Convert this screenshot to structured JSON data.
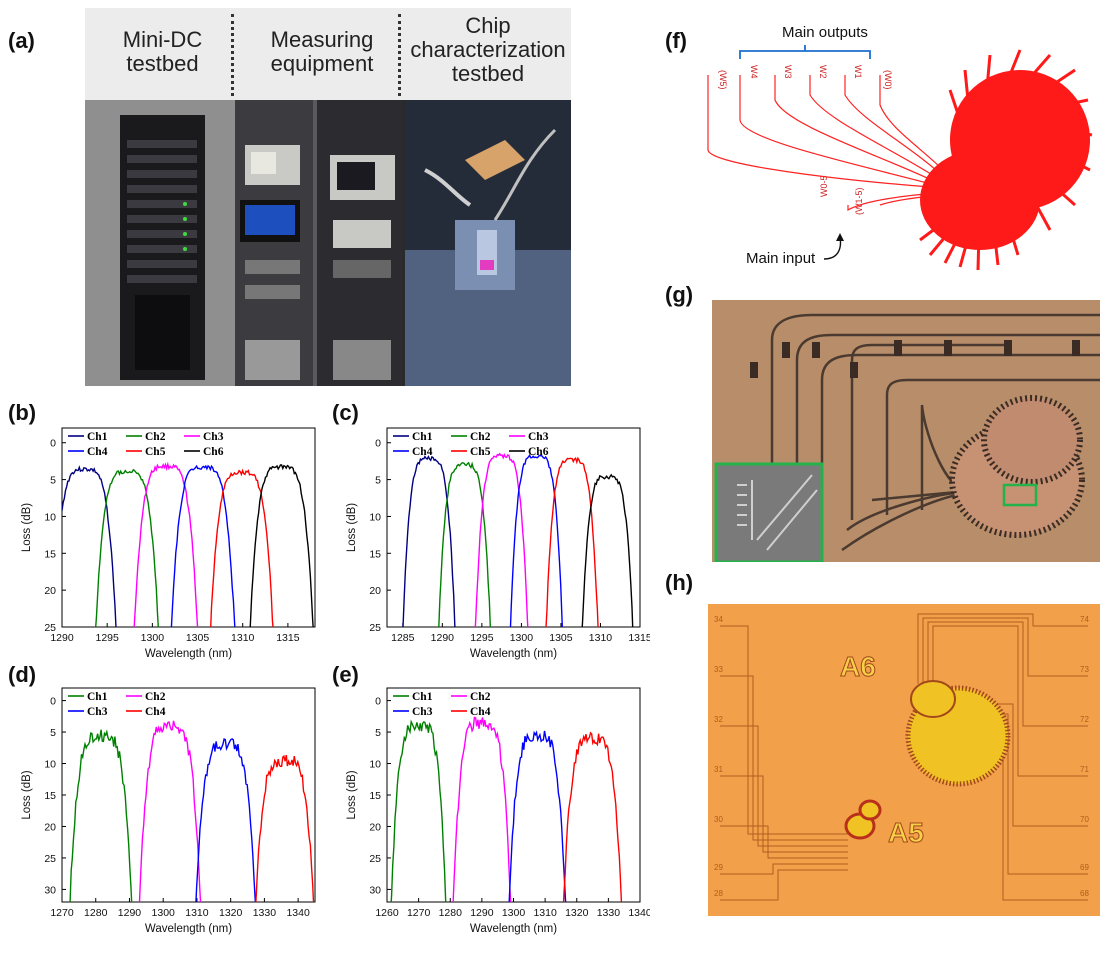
{
  "panels": {
    "a": {
      "label": "(a)",
      "headers": [
        "Mini-DC testbed",
        "Measuring equipment",
        "Chip characterization testbed"
      ]
    },
    "b": {
      "label": "(b)"
    },
    "c": {
      "label": "(c)"
    },
    "d": {
      "label": "(d)"
    },
    "e": {
      "label": "(e)"
    },
    "f": {
      "label": "(f)",
      "main_outputs": "Main outputs",
      "main_input": "Main input",
      "port_labels": [
        "(W5)",
        "W4",
        "W3",
        "W2",
        "W1",
        "(W0)"
      ],
      "input_labels": [
        "W0-5",
        "(W1-5)"
      ]
    },
    "g": {
      "label": "(g)"
    },
    "h": {
      "label": "(h)",
      "chip_labels": [
        "A6",
        "A5"
      ],
      "left_numbers": [
        "34",
        "33",
        "32",
        "31",
        "30",
        "29",
        "28"
      ],
      "right_numbers": [
        "74",
        "73",
        "72",
        "71",
        "70",
        "69",
        "68"
      ]
    }
  },
  "chart_data": [
    {
      "id": "b",
      "type": "line",
      "xlabel": "Wavelength (nm)",
      "ylabel": "Loss (dB)",
      "xlim": [
        1290,
        1318
      ],
      "ylim": [
        25,
        -2
      ],
      "xticks": [
        1290,
        1295,
        1300,
        1305,
        1310,
        1315
      ],
      "yticks": [
        0,
        5,
        10,
        15,
        20,
        25
      ],
      "series": [
        {
          "name": "Ch1",
          "color": "#000080",
          "center": 1292.5,
          "peak": 3.6,
          "width": 2.8
        },
        {
          "name": "Ch2",
          "color": "#008000",
          "center": 1297.2,
          "peak": 3.9,
          "width": 2.8
        },
        {
          "name": "Ch3",
          "color": "#ff00ff",
          "center": 1301.5,
          "peak": 3.2,
          "width": 2.8
        },
        {
          "name": "Ch4",
          "color": "#0000ff",
          "center": 1305.6,
          "peak": 3.3,
          "width": 2.8
        },
        {
          "name": "Ch5",
          "color": "#ff0000",
          "center": 1309.9,
          "peak": 4.0,
          "width": 2.8
        },
        {
          "name": "Ch6",
          "color": "#000000",
          "center": 1314.3,
          "peak": 3.3,
          "width": 2.8
        }
      ]
    },
    {
      "id": "c",
      "type": "line",
      "xlabel": "Wavelength (nm)",
      "ylabel": "Loss (dB)",
      "xlim": [
        1283,
        1315
      ],
      "ylim": [
        25,
        -2
      ],
      "xticks": [
        1285,
        1290,
        1295,
        1300,
        1305,
        1310,
        1315
      ],
      "yticks": [
        0,
        5,
        10,
        15,
        20,
        25
      ],
      "series": [
        {
          "name": "Ch1",
          "color": "#000080",
          "center": 1288.3,
          "peak": 2.1,
          "width": 2.6
        },
        {
          "name": "Ch2",
          "color": "#008000",
          "center": 1292.8,
          "peak": 3.0,
          "width": 2.6
        },
        {
          "name": "Ch3",
          "color": "#ff00ff",
          "center": 1297.5,
          "peak": 1.8,
          "width": 2.6
        },
        {
          "name": "Ch4",
          "color": "#0000ff",
          "center": 1301.9,
          "peak": 1.8,
          "width": 2.6
        },
        {
          "name": "Ch5",
          "color": "#ff0000",
          "center": 1306.4,
          "peak": 2.3,
          "width": 2.6
        },
        {
          "name": "Ch6",
          "color": "#000000",
          "center": 1310.9,
          "peak": 4.6,
          "width": 2.6
        }
      ]
    },
    {
      "id": "d",
      "type": "line",
      "xlabel": "Wavelength (nm)",
      "ylabel": "Loss (dB)",
      "xlim": [
        1270,
        1345
      ],
      "ylim": [
        32,
        -2
      ],
      "xticks": [
        1270,
        1280,
        1290,
        1300,
        1310,
        1320,
        1330,
        1340
      ],
      "yticks": [
        0,
        5,
        10,
        15,
        20,
        25,
        30
      ],
      "series": [
        {
          "name": "Ch1",
          "color": "#008000",
          "center": 1281.5,
          "peak": 5.5,
          "width": 7.0
        },
        {
          "name": "Ch2",
          "color": "#ff00ff",
          "center": 1302.0,
          "peak": 4.0,
          "width": 6.8
        },
        {
          "name": "Ch3",
          "color": "#0000ff",
          "center": 1318.5,
          "peak": 7.0,
          "width": 6.8
        },
        {
          "name": "Ch4",
          "color": "#ff0000",
          "center": 1336.0,
          "peak": 9.5,
          "width": 6.8
        }
      ]
    },
    {
      "id": "e",
      "type": "line",
      "xlabel": "Wavelength (nm)",
      "ylabel": "Loss (dB)",
      "xlim": [
        1260,
        1340
      ],
      "ylim": [
        32,
        -2
      ],
      "xticks": [
        1260,
        1270,
        1280,
        1290,
        1300,
        1310,
        1320,
        1330,
        1340
      ],
      "yticks": [
        0,
        5,
        10,
        15,
        20,
        25,
        30
      ],
      "series": [
        {
          "name": "Ch1",
          "color": "#008000",
          "center": 1270.0,
          "peak": 4.0,
          "width": 6.5
        },
        {
          "name": "Ch2",
          "color": "#ff00ff",
          "center": 1290.0,
          "peak": 3.5,
          "width": 6.8
        },
        {
          "name": "Ch3",
          "color": "#0000ff",
          "center": 1307.5,
          "peak": 5.5,
          "width": 6.8
        },
        {
          "name": "Ch4",
          "color": "#ff0000",
          "center": 1325.0,
          "peak": 6.0,
          "width": 7.0
        }
      ]
    }
  ]
}
